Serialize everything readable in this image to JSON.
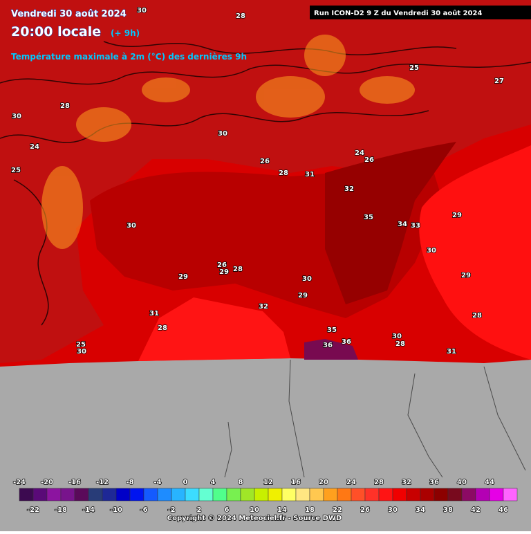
{
  "header": {
    "date": "Vendredi 30 août 2024",
    "time": "20:00 locale",
    "offset": "(+ 9h)",
    "variable": "Température maximale à 2m (°C) des dernières 9h",
    "run": "Run ICON-D2 9 Z du Vendredi 30 août 2024"
  },
  "map": {
    "labels": [
      30,
      28,
      30,
      32,
      35,
      34,
      33,
      29,
      30,
      29,
      28,
      31,
      36,
      36,
      35,
      30,
      28,
      29,
      26,
      29,
      31,
      28,
      30,
      25,
      32,
      29,
      31,
      28,
      30,
      28,
      30,
      24,
      25,
      25,
      24,
      30,
      28,
      26,
      26,
      27
    ]
  },
  "legend": {
    "ticks": [
      -24,
      -22,
      -20,
      -18,
      -16,
      -14,
      -12,
      -10,
      -8,
      -6,
      -4,
      -2,
      0,
      2,
      4,
      6,
      8,
      10,
      12,
      14,
      16,
      18,
      20,
      22,
      24,
      26,
      28,
      30,
      32,
      34,
      36,
      38,
      40,
      42,
      44,
      46
    ],
    "colors": [
      "#3c0a50",
      "#5a0a78",
      "#8c14a0",
      "#78148c",
      "#5a0a5a",
      "#283c78",
      "#1e2896",
      "#0000c8",
      "#0014f0",
      "#145aff",
      "#1e8cff",
      "#28b4ff",
      "#3cdcff",
      "#64ffd2",
      "#50ff8c",
      "#78f050",
      "#a0e628",
      "#c8f000",
      "#f0f000",
      "#ffff64",
      "#ffe682",
      "#ffc850",
      "#ffa01e",
      "#ff7814",
      "#ff5028",
      "#ff3228",
      "#ff1414",
      "#f00000",
      "#c80000",
      "#aa0000",
      "#8c0000",
      "#780a1e",
      "#8c0a64",
      "#b400b4",
      "#e600e6",
      "#ff64ff"
    ]
  },
  "footer": {
    "copyright": "Copyright © 2024 Meteociel.fr - Source DWD"
  }
}
